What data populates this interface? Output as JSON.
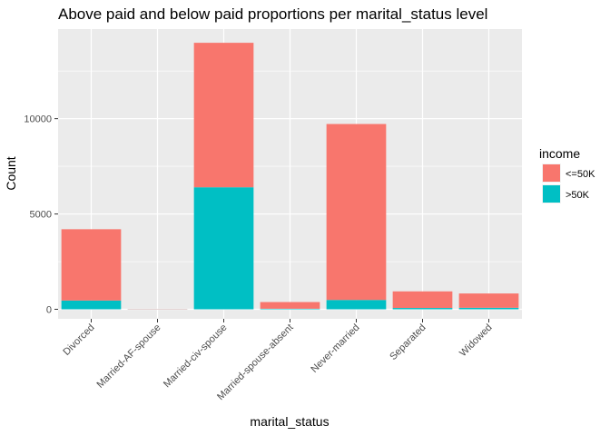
{
  "chart_data": {
    "type": "bar",
    "stacked": true,
    "title": "Above paid and below paid proportions per marital_status level",
    "xlabel": "marital_status",
    "ylabel": "Count",
    "categories": [
      "Divorced",
      "Married-AF-spouse",
      "Married-civ-spouse",
      "Married-spouse-absent",
      "Never-married",
      "Separated",
      "Widowed"
    ],
    "series": [
      {
        "name": ">50K",
        "color": "#00BFC4",
        "values": [
          460,
          10,
          6400,
          30,
          490,
          70,
          80
        ]
      },
      {
        "name": "<=50K",
        "color": "#F8766D",
        "values": [
          3740,
          13,
          7580,
          350,
          9230,
          870,
          750
        ]
      }
    ],
    "ylim": [
      -500,
      14700
    ],
    "yticks": [
      0,
      5000,
      10000
    ],
    "ytick_labels": [
      "0",
      "5000",
      "10000"
    ],
    "legend": {
      "title": "income",
      "position": "right",
      "items": [
        {
          "label": "<=50K",
          "color": "#F8766D"
        },
        {
          "label": ">50K",
          "color": "#00BFC4"
        }
      ]
    },
    "grid": true,
    "panel_background": "#EBEBEB",
    "gridline_color": "#FFFFFF"
  }
}
